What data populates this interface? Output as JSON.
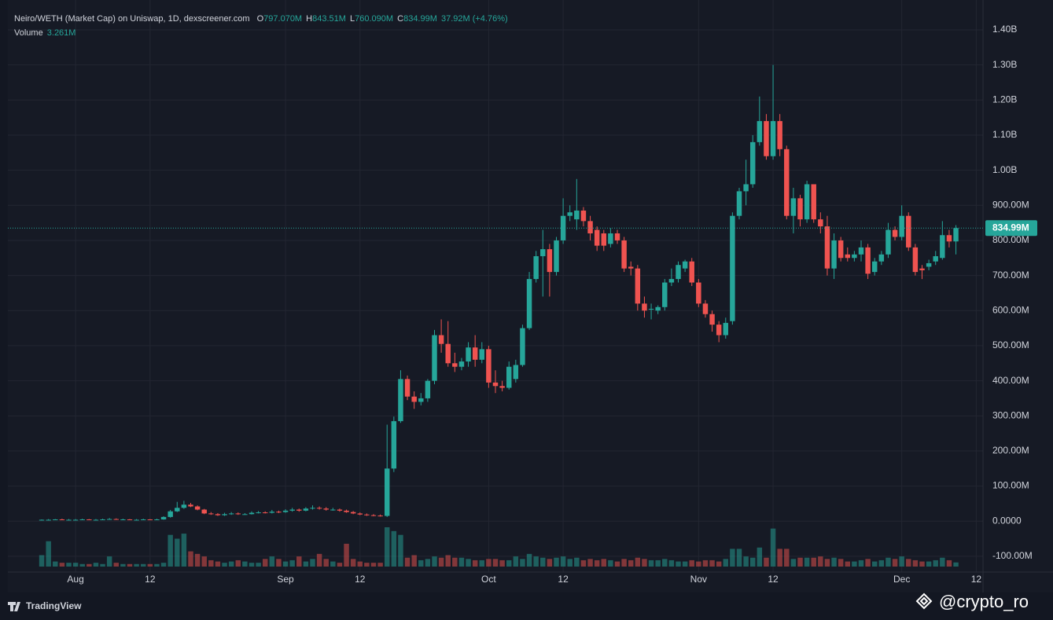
{
  "chart_data": {
    "type": "candlestick",
    "title": "Neiro/WETH (Market Cap) on Uniswap, 1D, dexscreener.com",
    "ohlc_legend": [
      {
        "label": "O",
        "value": "797.070M"
      },
      {
        "label": "H",
        "value": "843.51M"
      },
      {
        "label": "L",
        "value": "760.090M"
      },
      {
        "label": "C",
        "value": "834.99M"
      }
    ],
    "change": "37.92M (+4.76%)",
    "volume_label": "Volume",
    "volume_value": "3.261M",
    "last_price": {
      "value": 834.99,
      "label": "834.99M"
    },
    "up_color": "#26a69a",
    "down_color": "#ef5350",
    "grid": true,
    "x": [
      "07-27",
      "07-28",
      "07-29",
      "07-30",
      "07-31",
      "08-01",
      "08-02",
      "08-03",
      "08-04",
      "08-05",
      "08-06",
      "08-07",
      "08-08",
      "08-09",
      "08-10",
      "08-11",
      "08-12",
      "08-13",
      "08-14",
      "08-15",
      "08-16",
      "08-17",
      "08-18",
      "08-19",
      "08-20",
      "08-21",
      "08-22",
      "08-23",
      "08-24",
      "08-25",
      "08-26",
      "08-27",
      "08-28",
      "08-29",
      "08-30",
      "08-31",
      "09-01",
      "09-02",
      "09-03",
      "09-04",
      "09-05",
      "09-06",
      "09-07",
      "09-08",
      "09-09",
      "09-10",
      "09-11",
      "09-12",
      "09-13",
      "09-14",
      "09-15",
      "09-16",
      "09-17",
      "09-18",
      "09-19",
      "09-20",
      "09-21",
      "09-22",
      "09-23",
      "09-24",
      "09-25",
      "09-26",
      "09-27",
      "09-28",
      "09-29",
      "09-30",
      "10-01",
      "10-02",
      "10-03",
      "10-04",
      "10-05",
      "10-06",
      "10-07",
      "10-08",
      "10-09",
      "10-10",
      "10-11",
      "10-12",
      "10-13",
      "10-14",
      "10-15",
      "10-16",
      "10-17",
      "10-18",
      "10-19",
      "10-20",
      "10-21",
      "10-22",
      "10-23",
      "10-24",
      "10-25",
      "10-26",
      "10-27",
      "10-28",
      "10-29",
      "10-30",
      "10-31",
      "11-01",
      "11-02",
      "11-03",
      "11-04",
      "11-05",
      "11-06",
      "11-07",
      "11-08",
      "11-09",
      "11-10",
      "11-11",
      "11-12",
      "11-13",
      "11-14",
      "11-15",
      "11-16",
      "11-17",
      "11-18",
      "11-19",
      "11-20",
      "11-21",
      "11-22",
      "11-23",
      "11-24",
      "11-25",
      "11-26",
      "11-27",
      "11-28",
      "11-29",
      "11-30",
      "12-01",
      "12-02",
      "12-03",
      "12-04",
      "12-05",
      "12-06",
      "12-07",
      "12-08",
      "12-09"
    ],
    "open": [
      3,
      4,
      4,
      5,
      4,
      4,
      4,
      5,
      4,
      4,
      5,
      6,
      5,
      5,
      4,
      4,
      5,
      4,
      5,
      12,
      28,
      38,
      47,
      42,
      33,
      22,
      20,
      17,
      20,
      22,
      20,
      20,
      24,
      25,
      24,
      27,
      26,
      30,
      33,
      30,
      36,
      38,
      36,
      33,
      33,
      30,
      26,
      22,
      19,
      17,
      16,
      15,
      150,
      285,
      405,
      355,
      340,
      350,
      400,
      530,
      505,
      450,
      440,
      455,
      495,
      460,
      490,
      395,
      385,
      380,
      405,
      445,
      550,
      690,
      755,
      775,
      710,
      800,
      870,
      860,
      885,
      855,
      830,
      820,
      790,
      820,
      800,
      725,
      720,
      620,
      605,
      600,
      610,
      680,
      690,
      720,
      740,
      680,
      620,
      590,
      560,
      530,
      570,
      870,
      940,
      960,
      1080,
      1140,
      1040,
      1140,
      1060,
      870,
      920,
      860,
      960,
      860,
      840,
      720,
      800,
      760,
      750,
      760,
      780,
      710,
      740,
      760,
      830,
      810,
      870,
      780,
      720,
      725,
      740,
      750,
      815,
      797.07
    ],
    "high": [
      5,
      6,
      6,
      7,
      6,
      6,
      7,
      6,
      6,
      7,
      9,
      8,
      7,
      6,
      6,
      7,
      6,
      7,
      14,
      32,
      55,
      58,
      52,
      45,
      35,
      26,
      23,
      24,
      26,
      25,
      23,
      28,
      29,
      28,
      32,
      30,
      34,
      38,
      36,
      40,
      45,
      42,
      40,
      38,
      36,
      33,
      29,
      25,
      22,
      20,
      19,
      275,
      298,
      430,
      415,
      370,
      365,
      405,
      545,
      575,
      570,
      480,
      465,
      510,
      530,
      510,
      500,
      430,
      400,
      455,
      460,
      560,
      710,
      770,
      830,
      790,
      810,
      920,
      900,
      975,
      895,
      870,
      840,
      830,
      835,
      830,
      810,
      740,
      730,
      640,
      620,
      615,
      690,
      720,
      740,
      745,
      750,
      690,
      630,
      600,
      570,
      580,
      880,
      950,
      1030,
      1100,
      1210,
      1160,
      1300,
      1160,
      1070,
      950,
      930,
      970,
      960,
      880,
      870,
      820,
      810,
      780,
      770,
      800,
      790,
      750,
      770,
      850,
      840,
      900,
      880,
      790,
      730,
      745,
      770,
      855,
      830,
      843.51
    ],
    "low": [
      2,
      3,
      3,
      4,
      3,
      3,
      3,
      3,
      3,
      3,
      4,
      4,
      4,
      3,
      3,
      3,
      3,
      3,
      4,
      10,
      26,
      35,
      40,
      31,
      20,
      18,
      15,
      15,
      18,
      18,
      18,
      19,
      22,
      22,
      22,
      23,
      24,
      27,
      27,
      28,
      33,
      33,
      30,
      30,
      27,
      24,
      20,
      17,
      15,
      14,
      13,
      12,
      140,
      280,
      345,
      320,
      330,
      340,
      390,
      480,
      440,
      425,
      430,
      440,
      440,
      450,
      380,
      365,
      370,
      375,
      395,
      440,
      545,
      680,
      640,
      640,
      700,
      790,
      855,
      830,
      840,
      800,
      770,
      770,
      780,
      790,
      710,
      700,
      600,
      580,
      575,
      590,
      600,
      670,
      680,
      710,
      670,
      610,
      580,
      540,
      510,
      520,
      560,
      860,
      900,
      950,
      1070,
      1030,
      1030,
      1040,
      860,
      820,
      840,
      850,
      850,
      820,
      700,
      690,
      740,
      740,
      740,
      740,
      690,
      700,
      730,
      750,
      800,
      800,
      770,
      700,
      690,
      715,
      730,
      745,
      780,
      760.09
    ],
    "close": [
      4,
      4,
      5,
      4,
      4,
      4,
      5,
      4,
      4,
      5,
      6,
      5,
      5,
      4,
      4,
      5,
      4,
      5,
      12,
      28,
      38,
      47,
      42,
      33,
      22,
      20,
      17,
      20,
      22,
      20,
      20,
      24,
      25,
      24,
      27,
      26,
      30,
      33,
      30,
      36,
      38,
      36,
      33,
      33,
      30,
      26,
      22,
      19,
      17,
      16,
      15,
      150,
      285,
      405,
      355,
      340,
      350,
      400,
      530,
      505,
      450,
      440,
      455,
      495,
      460,
      490,
      395,
      385,
      380,
      440,
      445,
      550,
      690,
      755,
      775,
      710,
      800,
      870,
      880,
      885,
      855,
      820,
      785,
      785,
      820,
      800,
      720,
      720,
      620,
      600,
      605,
      610,
      680,
      690,
      730,
      740,
      680,
      620,
      590,
      560,
      530,
      565,
      870,
      940,
      960,
      1080,
      1140,
      1040,
      1140,
      1060,
      870,
      920,
      860,
      960,
      860,
      840,
      720,
      800,
      750,
      750,
      760,
      780,
      705,
      740,
      760,
      830,
      810,
      870,
      780,
      710,
      715,
      735,
      755,
      815,
      797,
      834.99
    ],
    "volume": [
      9,
      20,
      4,
      3,
      3,
      3,
      2,
      2,
      3,
      2,
      8,
      3,
      2,
      2,
      2,
      2,
      2,
      2,
      3,
      25,
      22,
      26,
      12,
      10,
      8,
      5,
      4,
      3,
      4,
      5,
      4,
      3,
      3,
      6,
      8,
      6,
      4,
      5,
      8,
      4,
      6,
      10,
      6,
      4,
      3,
      18,
      6,
      4,
      3,
      3,
      3,
      31,
      28,
      25,
      7,
      9,
      5,
      6,
      8,
      7,
      9,
      7,
      7,
      6,
      5,
      5,
      6,
      6,
      5,
      5,
      8,
      6,
      10,
      8,
      7,
      6,
      7,
      8,
      6,
      7,
      5,
      6,
      5,
      6,
      5,
      4,
      6,
      5,
      7,
      6,
      5,
      5,
      6,
      5,
      4,
      4,
      5,
      4,
      5,
      5,
      4,
      6,
      14,
      14,
      8,
      7,
      15,
      7,
      30,
      14,
      14,
      6,
      7,
      7,
      7,
      8,
      6,
      7,
      6,
      4,
      4,
      5,
      6,
      4,
      5,
      7,
      6,
      8,
      6,
      5,
      4,
      4,
      5,
      7,
      5,
      3.261
    ],
    "xlim": [
      "07-22",
      "12-13"
    ],
    "xticks": [
      {
        "value": "08-01",
        "label": "Aug"
      },
      {
        "value": "08-12",
        "label": "12"
      },
      {
        "value": "09-01",
        "label": "Sep"
      },
      {
        "value": "09-12",
        "label": "12"
      },
      {
        "value": "10-01",
        "label": "Oct"
      },
      {
        "value": "10-12",
        "label": "12"
      },
      {
        "value": "11-01",
        "label": "Nov"
      },
      {
        "value": "11-12",
        "label": "12"
      },
      {
        "value": "12-01",
        "label": "Dec"
      },
      {
        "value": "12-12",
        "label": "12"
      }
    ],
    "ylim": [
      -145,
      1485
    ],
    "yticks": [
      {
        "value": -100,
        "label": "-100.00M"
      },
      {
        "value": 0,
        "label": "0.0000"
      },
      {
        "value": 100,
        "label": "100.00M"
      },
      {
        "value": 200,
        "label": "200.00M"
      },
      {
        "value": 300,
        "label": "300.00M"
      },
      {
        "value": 400,
        "label": "400.00M"
      },
      {
        "value": 500,
        "label": "500.00M"
      },
      {
        "value": 600,
        "label": "600.00M"
      },
      {
        "value": 700,
        "label": "700.00M"
      },
      {
        "value": 800,
        "label": "800.00M"
      },
      {
        "value": 900,
        "label": "900.00M"
      },
      {
        "value": 1000,
        "label": "1.00B"
      },
      {
        "value": 1100,
        "label": "1.10B"
      },
      {
        "value": 1200,
        "label": "1.20B"
      },
      {
        "value": 1300,
        "label": "1.30B"
      },
      {
        "value": 1400,
        "label": "1.40B"
      }
    ]
  },
  "footer": {
    "brand": "TradingView",
    "watermark": "@crypto_ro"
  }
}
